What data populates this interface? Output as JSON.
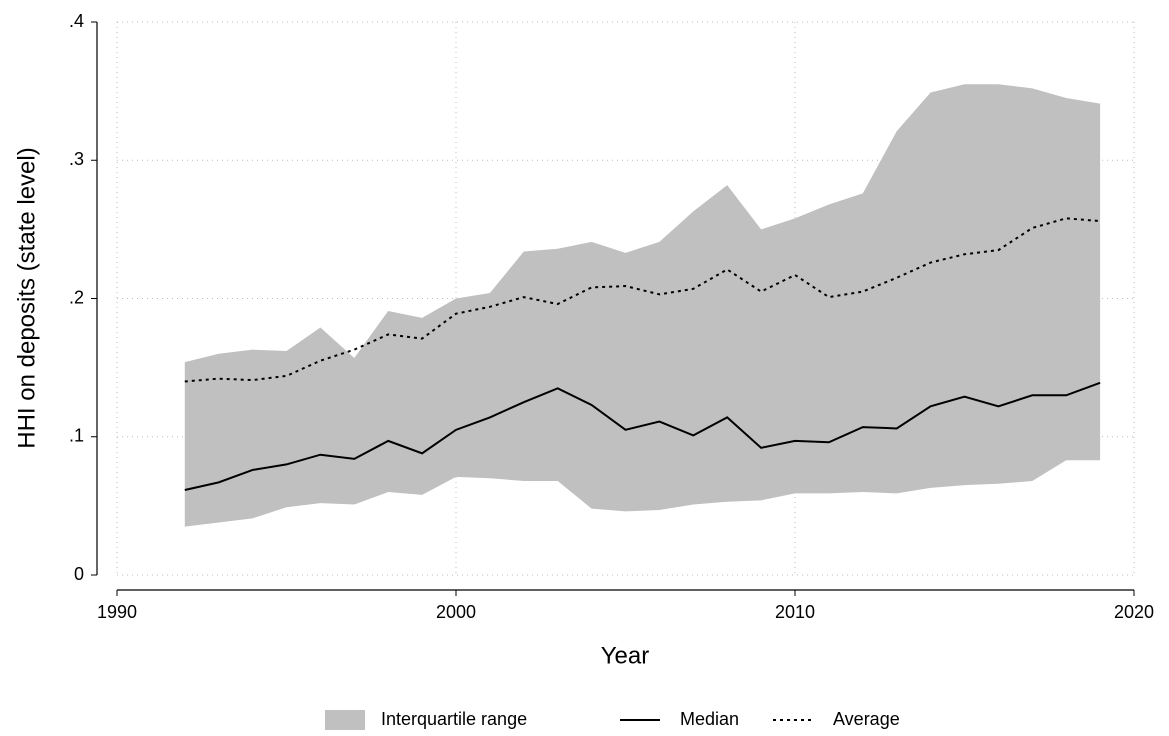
{
  "chart_data": {
    "type": "line",
    "x_label": "Year",
    "y_label": "HHI on deposits (state level)",
    "x": [
      1992,
      1993,
      1994,
      1995,
      1996,
      1997,
      1998,
      1999,
      2000,
      2001,
      2002,
      2003,
      2004,
      2005,
      2006,
      2007,
      2008,
      2009,
      2010,
      2011,
      2012,
      2013,
      2014,
      2015,
      2016,
      2017,
      2018,
      2019
    ],
    "series": [
      {
        "name": "Interquartile range",
        "type": "area",
        "color": "#c0c0c0",
        "upper": [
          0.154,
          0.16,
          0.163,
          0.162,
          0.179,
          0.157,
          0.191,
          0.186,
          0.2,
          0.204,
          0.234,
          0.236,
          0.241,
          0.233,
          0.241,
          0.263,
          0.282,
          0.25,
          0.258,
          0.268,
          0.276,
          0.321,
          0.349,
          0.355,
          0.355,
          0.352,
          0.345,
          0.341
        ],
        "lower": [
          0.035,
          0.038,
          0.041,
          0.049,
          0.052,
          0.051,
          0.06,
          0.058,
          0.071,
          0.07,
          0.068,
          0.068,
          0.048,
          0.046,
          0.047,
          0.051,
          0.053,
          0.054,
          0.059,
          0.059,
          0.06,
          0.059,
          0.063,
          0.065,
          0.066,
          0.068,
          0.083,
          0.083
        ]
      },
      {
        "name": "Median",
        "color": "#000000",
        "dash": "solid",
        "values": [
          0.0615,
          0.067,
          0.076,
          0.08,
          0.087,
          0.084,
          0.097,
          0.088,
          0.105,
          0.114,
          0.125,
          0.135,
          0.123,
          0.105,
          0.111,
          0.101,
          0.114,
          0.092,
          0.097,
          0.096,
          0.107,
          0.106,
          0.122,
          0.129,
          0.122,
          0.13,
          0.13,
          0.139
        ]
      },
      {
        "name": "Average",
        "color": "#000000",
        "dash": "dotted",
        "values": [
          0.14,
          0.142,
          0.141,
          0.144,
          0.155,
          0.163,
          0.174,
          0.171,
          0.189,
          0.194,
          0.201,
          0.196,
          0.208,
          0.209,
          0.203,
          0.207,
          0.221,
          0.205,
          0.217,
          0.201,
          0.205,
          0.215,
          0.226,
          0.232,
          0.235,
          0.251,
          0.258,
          0.256
        ]
      }
    ],
    "xlim": [
      1990,
      2020
    ],
    "xticks": [
      1990,
      2000,
      2010,
      2020
    ],
    "ylim": [
      0,
      0.4
    ],
    "yticks": [
      0,
      {
        "value": 0.1,
        "label": ".1"
      },
      {
        "value": 0.2,
        "label": ".2"
      },
      {
        "value": 0.3,
        "label": ".3"
      },
      {
        "value": 0.4,
        "label": ".4"
      }
    ],
    "grid": true,
    "legend": "bottom"
  }
}
